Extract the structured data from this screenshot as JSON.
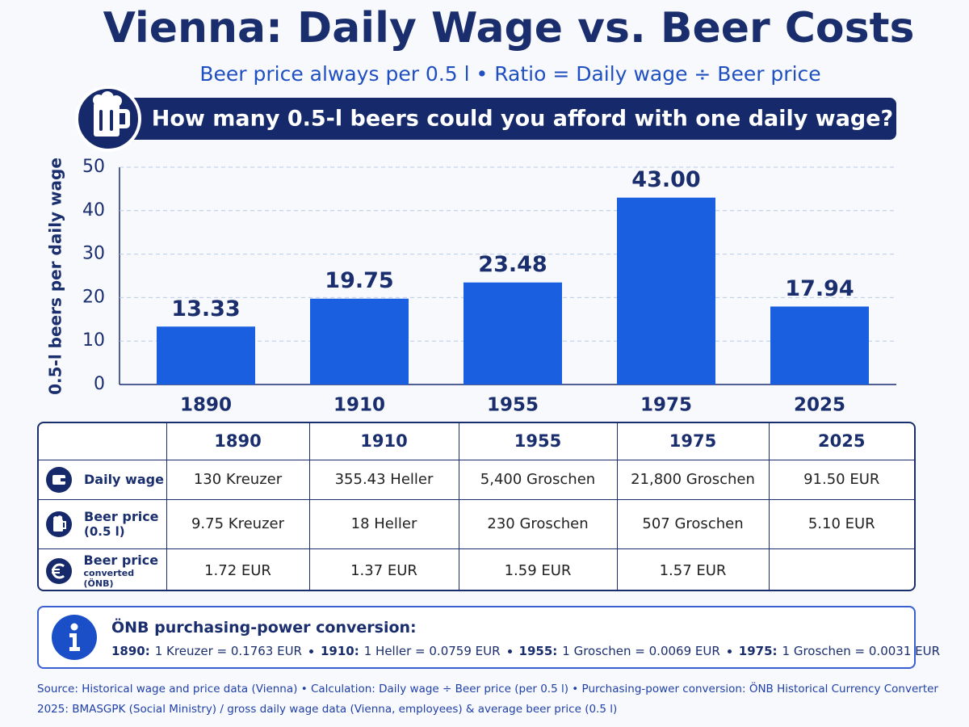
{
  "chart_data": {
    "type": "bar",
    "title": "Vienna: Daily Wage vs. Beer Costs",
    "subtitle": "Beer price always per 0.5 l • Ratio = Daily wage ÷ Beer price",
    "question": "How many 0.5-l beers could you afford with one daily wage?",
    "ylabel": "0.5-l beers per daily wage",
    "categories": [
      "1890",
      "1910",
      "1955",
      "1975",
      "2025"
    ],
    "values": [
      13.33,
      19.75,
      23.48,
      43,
      17.94
    ],
    "value_labels": [
      "13.33",
      "19.75",
      "23.48",
      "43.00",
      "17.94"
    ],
    "color": "#1a5fe0",
    "ylim": [
      0,
      50
    ],
    "yticks": [
      0,
      10,
      20,
      30,
      40,
      50
    ],
    "grid": true
  },
  "table": {
    "columns": [
      "1890",
      "1910",
      "1955",
      "1975",
      "2025"
    ],
    "rows": [
      {
        "label": [
          "Daily wage"
        ],
        "cells": [
          "130 Kreuzer",
          "355.43 Heller",
          "5,400 Groschen",
          "21,800 Groschen",
          "91.50 EUR"
        ]
      },
      {
        "label": [
          "Beer price",
          "(0.5 l)"
        ],
        "cells": [
          "9.75 Kreuzer",
          "18 Heller",
          "230 Groschen",
          "507 Groschen",
          "5.10 EUR"
        ]
      },
      {
        "label": [
          "Beer price",
          "converted (ÖNB)"
        ],
        "cells": [
          "1.72 EUR",
          "1.37 EUR",
          "1.59 EUR",
          "1.57 EUR"
        ]
      }
    ]
  },
  "info": {
    "title": "ÖNB purchasing-power conversion:",
    "items": [
      {
        "year": "1890:",
        "text": "1 Kreuzer = 0.1763 EUR"
      },
      {
        "year": "1910:",
        "text": "1 Heller = 0.0759 EUR"
      },
      {
        "year": "1955:",
        "text": "1 Groschen = 0.0069 EUR"
      },
      {
        "year": "1975:",
        "text": "1 Groschen = 0.0031 EUR"
      }
    ]
  },
  "source": [
    "Source: Historical wage and price data (Vienna) • Calculation: Daily wage ÷ Beer price (per 0.5 l) • Purchasing-power conversion: ÖNB Historical Currency Converter",
    "2025: BMASGPK (Social Ministry) / gross daily wage data (Vienna, employees) & average beer price (0.5 l)"
  ]
}
